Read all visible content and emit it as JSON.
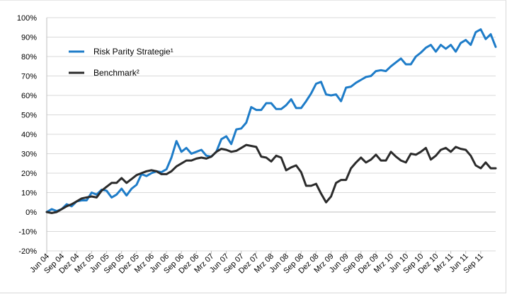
{
  "chart_data": {
    "type": "line",
    "title": "",
    "xlabel": "",
    "ylabel": "",
    "ylim": [
      -20,
      100
    ],
    "y_ticks": [
      -20,
      -10,
      0,
      10,
      20,
      30,
      40,
      50,
      60,
      70,
      80,
      90,
      100
    ],
    "y_tick_labels": [
      "-20%",
      "-10%",
      "0%",
      "10%",
      "20%",
      "30%",
      "40%",
      "50%",
      "60%",
      "70%",
      "80%",
      "90%",
      "100%"
    ],
    "x_tick_labels": [
      "Jun 04",
      "Sep 04",
      "Dez 04",
      "Mrz 05",
      "Jun 05",
      "Sep 05",
      "Dez 05",
      "Mrz 06",
      "Jun 06",
      "Sep 06",
      "Dez 06",
      "Mrz 07",
      "Jun 07",
      "Sep 07",
      "Dez 07",
      "Mrz 08",
      "Jun 08",
      "Sep 08",
      "Dez 08",
      "Mrz 09",
      "Jun 09",
      "Sep 09",
      "Dez 09",
      "Mrz 10",
      "Jun 10",
      "Sep 10",
      "Dez 10",
      "Mrz 11",
      "Jun 11",
      "Sep 11"
    ],
    "x_tick_start_month": 0,
    "x_tick_step_months": 3,
    "n_months": 91,
    "grid": "horizontal",
    "legend_position": "top-left",
    "series": [
      {
        "name": "Risk Parity Strategie¹",
        "color": "#1e7cc8",
        "values": [
          0,
          1.5,
          0.5,
          1.5,
          4,
          3,
          5.5,
          6,
          6,
          10,
          9,
          11.5,
          11,
          7.5,
          9,
          12,
          8.5,
          12,
          14,
          19.5,
          18.5,
          20,
          21,
          20.5,
          22,
          28,
          36.5,
          31,
          33,
          30,
          31,
          32,
          29,
          28.5,
          31,
          37.5,
          39,
          35,
          42.5,
          43,
          46,
          54,
          52.5,
          52.5,
          56,
          56,
          53,
          53,
          55,
          58,
          53.5,
          53.5,
          57,
          61,
          66,
          67,
          60.5,
          60,
          60.5,
          57,
          64,
          64.5,
          66.5,
          68,
          69.5,
          70,
          72.5,
          73,
          72.5,
          75,
          77,
          79,
          76,
          76,
          80,
          82,
          84.5,
          86,
          82.5,
          86,
          84,
          86,
          82.5,
          87,
          88.5,
          86,
          92.5,
          94,
          89,
          91.5,
          85
        ]
      },
      {
        "name": "Benchmark²",
        "color": "#2b2b2b",
        "values": [
          0,
          -0.5,
          0,
          1.5,
          3,
          4,
          5.5,
          7,
          7.5,
          8,
          7.5,
          11,
          13,
          15,
          15,
          17.5,
          15,
          17,
          19,
          20,
          21,
          21.5,
          21,
          19.5,
          19.5,
          21,
          23.5,
          25,
          26.5,
          26.5,
          27.5,
          28,
          27.5,
          28.5,
          31,
          32.5,
          32,
          31,
          31.5,
          33,
          34.5,
          34,
          33.5,
          28.5,
          28,
          26,
          29,
          28,
          21.5,
          23,
          24,
          20.5,
          13.5,
          13.5,
          14.5,
          9.5,
          5,
          8,
          15,
          16.5,
          16.5,
          22.5,
          25.5,
          28,
          25.5,
          27,
          29.5,
          26.5,
          26.5,
          31,
          28.5,
          26.5,
          25.5,
          30,
          29.5,
          31,
          33,
          27,
          29,
          32,
          33,
          31,
          33.5,
          32.5,
          32,
          29,
          24,
          22.5,
          25.5,
          22.5,
          22.5
        ]
      }
    ]
  }
}
